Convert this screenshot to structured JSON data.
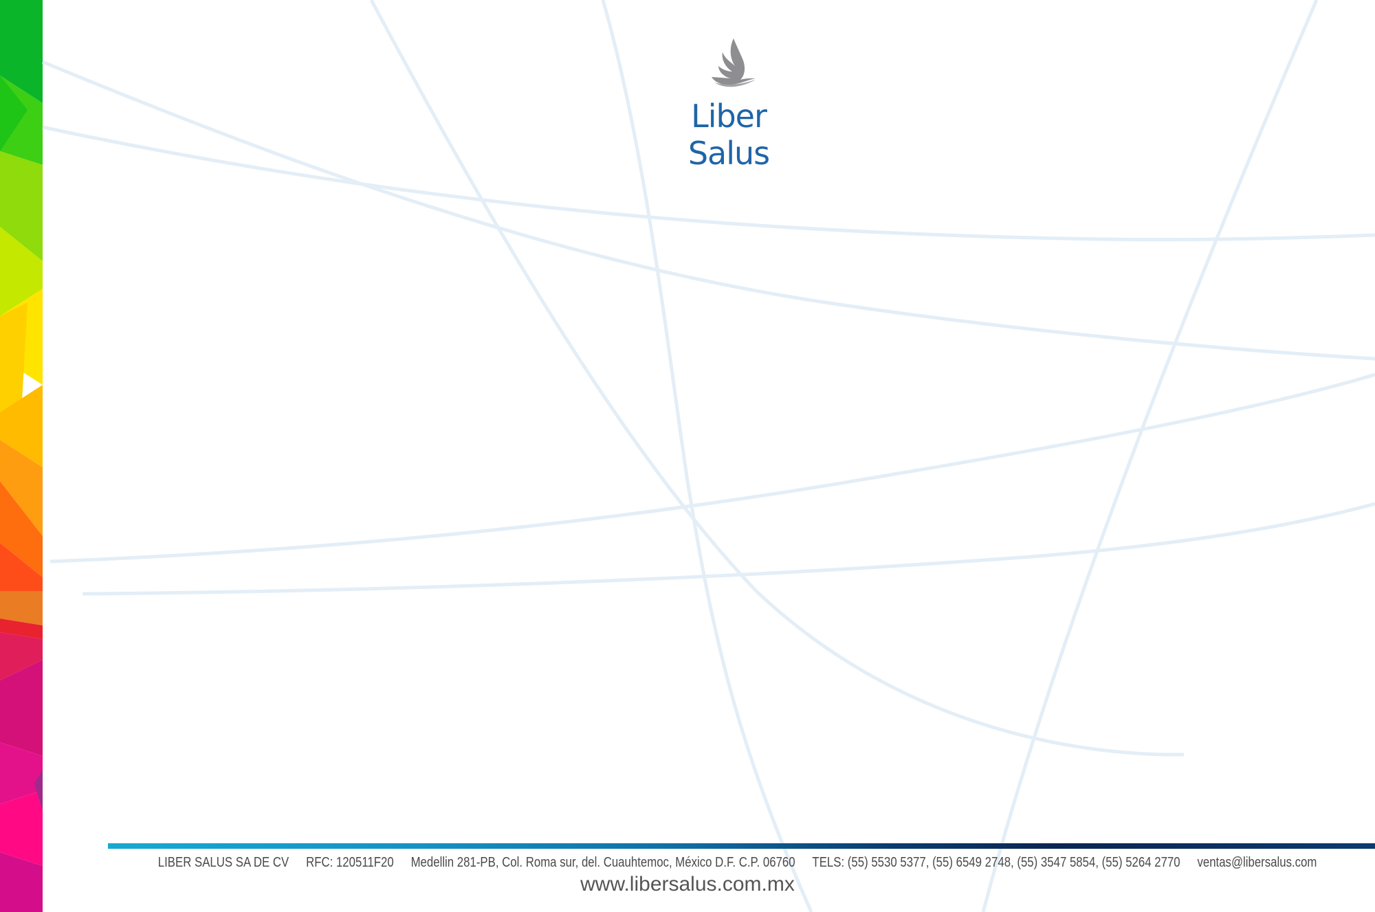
{
  "brand": {
    "name": "Liber Salus",
    "logo_color": "#1f65a7",
    "bird_color": "#8e8e92"
  },
  "footer": {
    "company": "LIBER SALUS SA DE CV",
    "rfc": "RFC: 120511F20",
    "address": "Medellin 281-PB, Col. Roma sur, del. Cuauhtemoc, México D.F. C.P. 06760",
    "phones": "TELS: (55) 5530 5377, (55) 6549 2748, (55) 3547 5854, (55) 5264 2770",
    "email": "ventas@libersalus.com",
    "website": "www.libersalus.com.mx"
  },
  "colors": {
    "line_color": "#e3eef7",
    "footer_text": "#4a4a4a"
  }
}
